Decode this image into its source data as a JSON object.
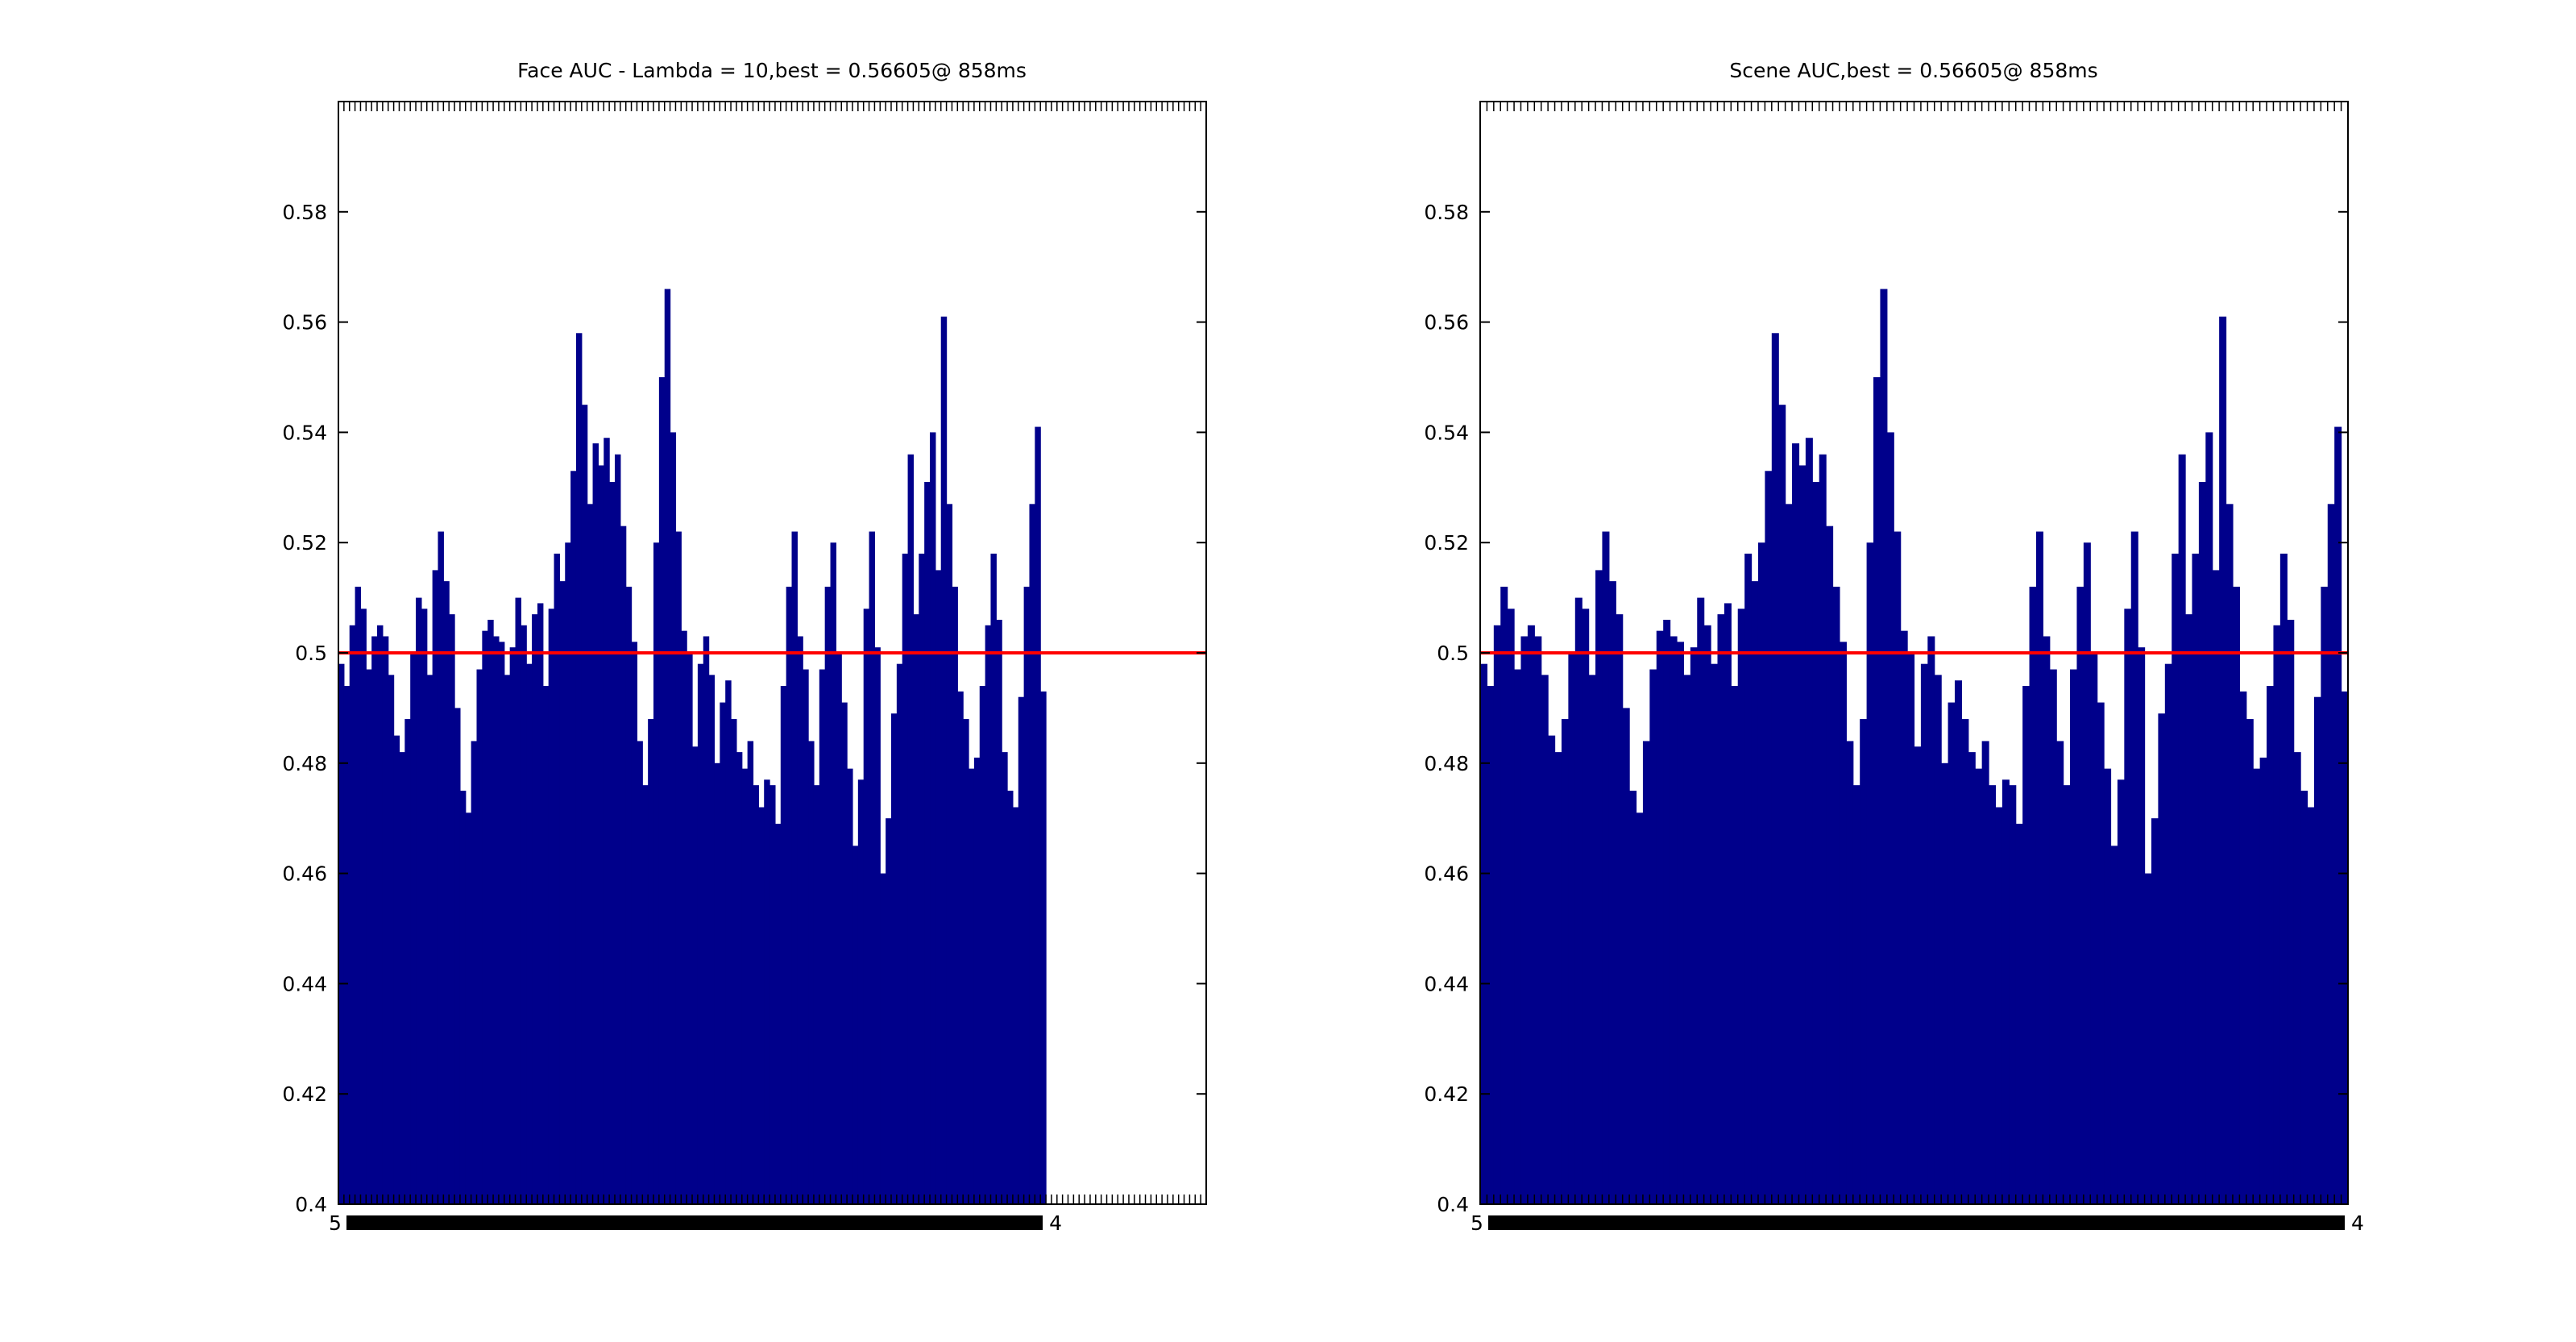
{
  "chart_data": [
    {
      "type": "bar",
      "title": "Face AUC - Lambda = 10,best = 0.56605@ 858ms",
      "xlabel": "",
      "ylabel": "",
      "ylim": [
        0.4,
        0.6
      ],
      "yticks": [
        0.4,
        0.42,
        0.44,
        0.46,
        0.48,
        0.5,
        0.52,
        0.54,
        0.56,
        0.58
      ],
      "ytick_labels": [
        "0.4",
        "0.42",
        "0.44",
        "0.46",
        "0.48",
        "0.5",
        "0.52",
        "0.54",
        "0.56",
        "0.58"
      ],
      "xtick_labels_visible": [
        "5",
        "0",
        "4"
      ],
      "bar_count": 128,
      "axis_bar_slots": 157,
      "reference_line": {
        "value": 0.5,
        "color": "#ff0000"
      },
      "bar_color": "#00008b",
      "grid": false,
      "values": [
        0.498,
        0.494,
        0.505,
        0.512,
        0.508,
        0.497,
        0.503,
        0.505,
        0.503,
        0.496,
        0.485,
        0.482,
        0.488,
        0.5,
        0.51,
        0.508,
        0.496,
        0.515,
        0.522,
        0.513,
        0.507,
        0.49,
        0.475,
        0.471,
        0.484,
        0.497,
        0.504,
        0.506,
        0.503,
        0.502,
        0.496,
        0.501,
        0.51,
        0.505,
        0.498,
        0.507,
        0.509,
        0.494,
        0.508,
        0.518,
        0.513,
        0.52,
        0.533,
        0.558,
        0.545,
        0.527,
        0.538,
        0.534,
        0.539,
        0.531,
        0.536,
        0.523,
        0.512,
        0.502,
        0.484,
        0.476,
        0.488,
        0.52,
        0.55,
        0.566,
        0.54,
        0.522,
        0.504,
        0.5,
        0.483,
        0.498,
        0.503,
        0.496,
        0.48,
        0.491,
        0.495,
        0.488,
        0.482,
        0.479,
        0.484,
        0.476,
        0.472,
        0.477,
        0.476,
        0.469,
        0.494,
        0.512,
        0.522,
        0.503,
        0.497,
        0.484,
        0.476,
        0.497,
        0.512,
        0.52,
        0.5,
        0.491,
        0.479,
        0.465,
        0.477,
        0.508,
        0.522,
        0.501,
        0.46,
        0.47,
        0.489,
        0.498,
        0.518,
        0.536,
        0.507,
        0.518,
        0.531,
        0.54,
        0.515,
        0.561,
        0.527,
        0.512,
        0.493,
        0.488,
        0.479,
        0.481,
        0.494,
        0.505,
        0.518,
        0.506,
        0.482,
        0.475,
        0.472,
        0.492,
        0.512,
        0.527,
        0.541,
        0.493
      ]
    },
    {
      "type": "bar",
      "title": "Scene AUC,best = 0.56605@ 858ms",
      "xlabel": "",
      "ylabel": "",
      "ylim": [
        0.4,
        0.6
      ],
      "yticks": [
        0.4,
        0.42,
        0.44,
        0.46,
        0.48,
        0.5,
        0.52,
        0.54,
        0.56,
        0.58
      ],
      "ytick_labels": [
        "0.4",
        "0.42",
        "0.44",
        "0.46",
        "0.48",
        "0.5",
        "0.52",
        "0.54",
        "0.56",
        "0.58"
      ],
      "xtick_labels_visible": [
        "5",
        "0",
        "4"
      ],
      "bar_count": 128,
      "axis_bar_slots": 128,
      "reference_line": {
        "value": 0.5,
        "color": "#ff0000"
      },
      "bar_color": "#00008b",
      "grid": false,
      "values": [
        0.498,
        0.494,
        0.505,
        0.512,
        0.508,
        0.497,
        0.503,
        0.505,
        0.503,
        0.496,
        0.485,
        0.482,
        0.488,
        0.5,
        0.51,
        0.508,
        0.496,
        0.515,
        0.522,
        0.513,
        0.507,
        0.49,
        0.475,
        0.471,
        0.484,
        0.497,
        0.504,
        0.506,
        0.503,
        0.502,
        0.496,
        0.501,
        0.51,
        0.505,
        0.498,
        0.507,
        0.509,
        0.494,
        0.508,
        0.518,
        0.513,
        0.52,
        0.533,
        0.558,
        0.545,
        0.527,
        0.538,
        0.534,
        0.539,
        0.531,
        0.536,
        0.523,
        0.512,
        0.502,
        0.484,
        0.476,
        0.488,
        0.52,
        0.55,
        0.566,
        0.54,
        0.522,
        0.504,
        0.5,
        0.483,
        0.498,
        0.503,
        0.496,
        0.48,
        0.491,
        0.495,
        0.488,
        0.482,
        0.479,
        0.484,
        0.476,
        0.472,
        0.477,
        0.476,
        0.469,
        0.494,
        0.512,
        0.522,
        0.503,
        0.497,
        0.484,
        0.476,
        0.497,
        0.512,
        0.52,
        0.5,
        0.491,
        0.479,
        0.465,
        0.477,
        0.508,
        0.522,
        0.501,
        0.46,
        0.47,
        0.489,
        0.498,
        0.518,
        0.536,
        0.507,
        0.518,
        0.531,
        0.54,
        0.515,
        0.561,
        0.527,
        0.512,
        0.493,
        0.488,
        0.479,
        0.481,
        0.494,
        0.505,
        0.518,
        0.506,
        0.482,
        0.475,
        0.472,
        0.492,
        0.512,
        0.527,
        0.541,
        0.493
      ]
    }
  ]
}
